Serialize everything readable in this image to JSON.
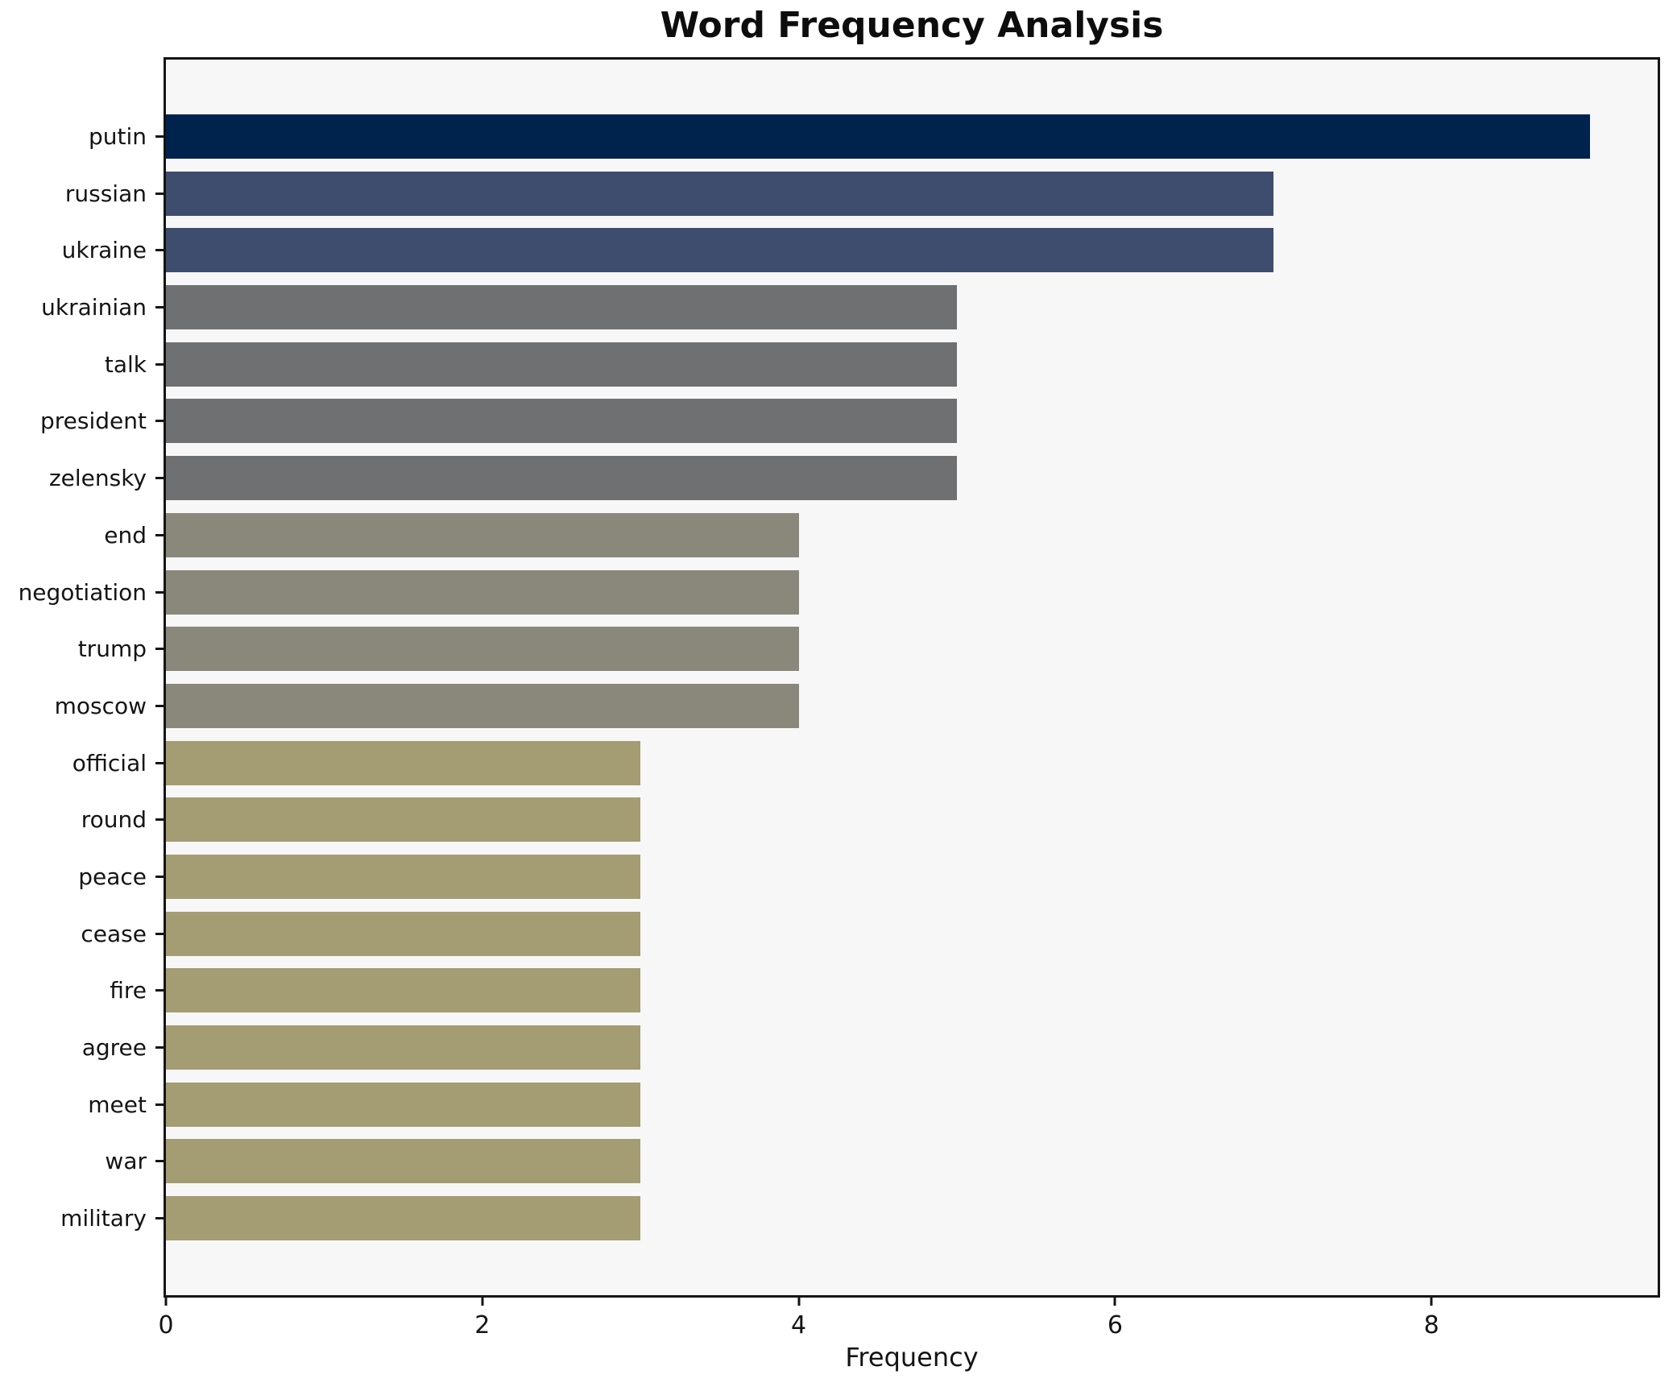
{
  "figure": {
    "background": "#ffffff",
    "plot_background": "#f7f7f8",
    "spine_color": "#141414",
    "text_color": "#141414"
  },
  "chart_data": {
    "type": "bar",
    "orientation": "horizontal",
    "title": "Word Frequency Analysis",
    "xlabel": "Frequency",
    "ylabel": "",
    "categories": [
      "putin",
      "russian",
      "ukraine",
      "ukrainian",
      "talk",
      "president",
      "zelensky",
      "end",
      "negotiation",
      "trump",
      "moscow",
      "official",
      "round",
      "peace",
      "cease",
      "fire",
      "agree",
      "meet",
      "war",
      "military"
    ],
    "values": [
      9,
      7,
      7,
      5,
      5,
      5,
      5,
      4,
      4,
      4,
      4,
      3,
      3,
      3,
      3,
      3,
      3,
      3,
      3,
      3
    ],
    "bar_colors": [
      "#00234e",
      "#3e4c6e",
      "#3e4c6e",
      "#6f7072",
      "#6f7072",
      "#6f7072",
      "#6f7072",
      "#89887b",
      "#89887b",
      "#89887b",
      "#89887b",
      "#a49c72",
      "#a49c72",
      "#a49c72",
      "#a49c72",
      "#a49c72",
      "#a49c72",
      "#a49c72",
      "#a49c72",
      "#a49c72"
    ],
    "xlim": [
      0,
      9.43
    ],
    "x_ticks": [
      0,
      2,
      4,
      6,
      8
    ],
    "grid": false,
    "legend": null,
    "bar_height_ratio": 0.78
  }
}
